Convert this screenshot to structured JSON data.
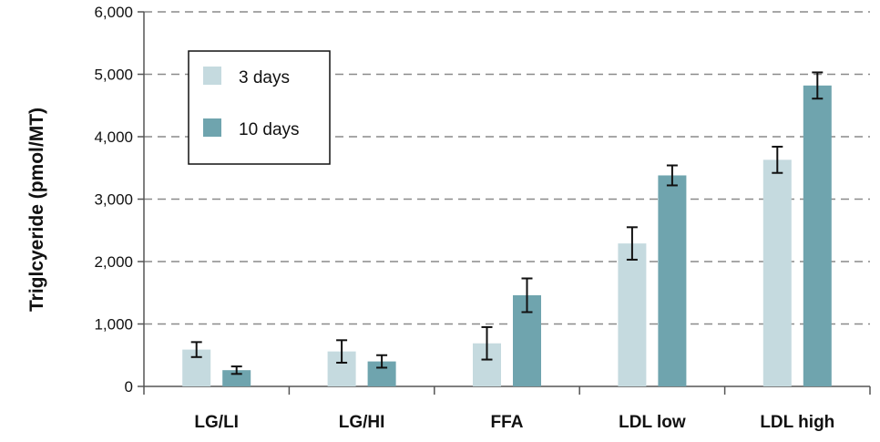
{
  "chart_data": {
    "type": "bar",
    "title": "",
    "xlabel": "",
    "ylabel": "Triglcyeride (pmol/MT)",
    "ylim": [
      0,
      6000
    ],
    "yticks": [
      0,
      1000,
      2000,
      3000,
      4000,
      5000,
      6000
    ],
    "ytick_labels": [
      "0",
      "1,000",
      "2,000",
      "3,000",
      "4,000",
      "5,000",
      "6,000"
    ],
    "grid": "horizontal dashed",
    "legend_position": "top-left",
    "categories": [
      "LG/LI",
      "LG/HI",
      "FFA",
      "LDL low",
      "LDL high"
    ],
    "series": [
      {
        "name": "3 days",
        "color": "#c5dadf",
        "values": [
          590,
          560,
          690,
          2290,
          3630
        ],
        "error": [
          120,
          180,
          260,
          260,
          210
        ]
      },
      {
        "name": "10 days",
        "color": "#6fa4ae",
        "values": [
          260,
          400,
          1460,
          3380,
          4820
        ],
        "error": [
          60,
          100,
          270,
          160,
          210
        ]
      }
    ]
  }
}
